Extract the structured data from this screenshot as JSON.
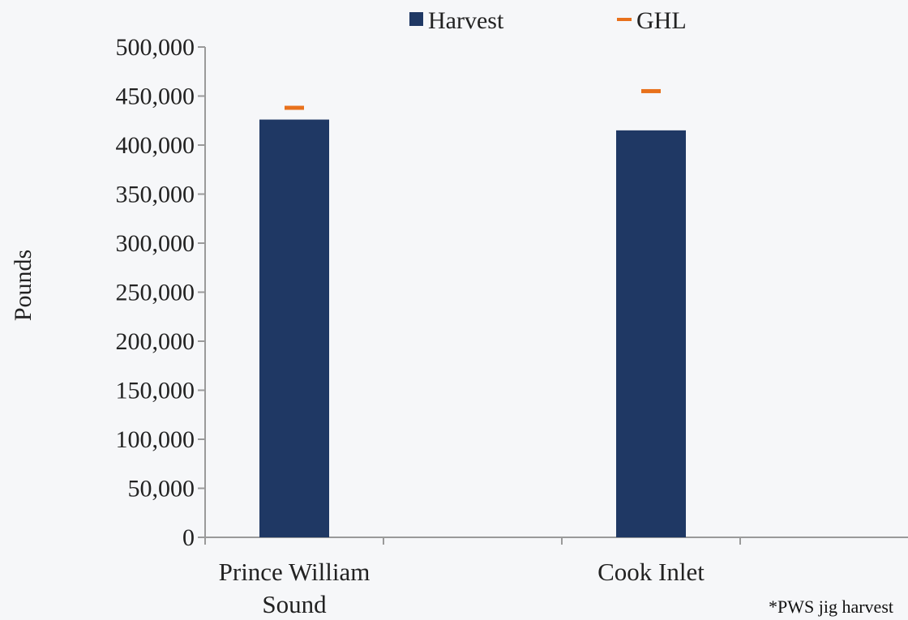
{
  "chart_data": {
    "type": "bar",
    "categories": [
      "Prince William Sound",
      "Cook Inlet"
    ],
    "category_label_lines": [
      [
        "Prince William",
        "Sound"
      ],
      [
        "Cook Inlet"
      ]
    ],
    "series": [
      {
        "name": "Harvest",
        "kind": "bar",
        "values": [
          426000,
          415000
        ],
        "color": "#1f3864"
      },
      {
        "name": "GHL",
        "kind": "marker",
        "values": [
          438000,
          455000
        ],
        "color": "#e8711c"
      }
    ],
    "ylabel": "Pounds",
    "ylim": [
      0,
      500000
    ],
    "yticks": [
      0,
      50000,
      100000,
      150000,
      200000,
      250000,
      300000,
      350000,
      400000,
      450000,
      500000
    ],
    "ytick_labels": [
      "0",
      "50,000",
      "100,000",
      "150,000",
      "200,000",
      "250,000",
      "300,000",
      "350,000",
      "400,000",
      "450,000",
      "500,000"
    ],
    "legend_position": "top-center",
    "grid": false
  },
  "footnote": "*PWS jig harvest"
}
